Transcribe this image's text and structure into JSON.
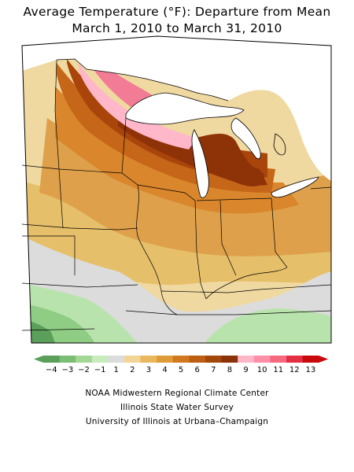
{
  "title": {
    "line1": "Average Temperature (°F): Departure from Mean",
    "line2": "March 1, 2010 to March 31, 2010"
  },
  "legend": {
    "labels": [
      "-4",
      "-3",
      "-2",
      "-1",
      "1",
      "2",
      "3",
      "4",
      "5",
      "6",
      "7",
      "8",
      "9",
      "10",
      "11",
      "12",
      "13"
    ],
    "colors": [
      "#5aa05a",
      "#7cbd74",
      "#a3d796",
      "#c6ebbc",
      "#dcdcdc",
      "#f2d495",
      "#e9b85c",
      "#df9b36",
      "#d1791e",
      "#bd5e12",
      "#a3470b",
      "#8a3308",
      "#ffb6c8",
      "#ff8fa8",
      "#f6697f",
      "#e33045",
      "#c80a0a"
    ]
  },
  "credits": {
    "line1": "NOAA Midwestern Regional Climate Center",
    "line2": "Illinois State Water Survey",
    "line3": "University of Illinois at Urbana–Champaign"
  },
  "palette": {
    "green_dark": "#5aa05a",
    "green": "#8fcd84",
    "green_light": "#b9e3ad",
    "gray": "#dcdcdc",
    "tan_light": "#f0d9a0",
    "tan": "#e6bf6a",
    "orange_light": "#dea04a",
    "orange": "#d9862c",
    "orange_dark": "#c56618",
    "brown": "#a9450b",
    "brown_dark": "#8e3208",
    "pink": "#f27c96",
    "pink_light": "#ffb7c9",
    "water": "#ffffff",
    "outline": "#000000"
  }
}
